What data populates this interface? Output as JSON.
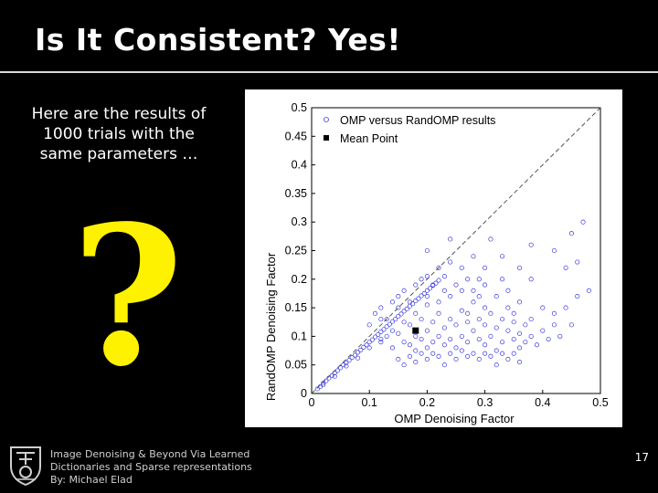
{
  "slide": {
    "title": "Is It Consistent? Yes!",
    "intro_lines": [
      "Here are the results of",
      "1000 trials with the",
      "same parameters …"
    ],
    "question_mark": "?",
    "footer_lines": [
      "Image Denoising & Beyond Via Learned",
      "Dictionaries and Sparse representations",
      "By: Michael Elad"
    ],
    "page_number": "17",
    "colors": {
      "background": "#000000",
      "title": "#ffffff",
      "question_mark": "#fff200",
      "scatter": "#3b3bdc",
      "mean_point": "#000000"
    }
  },
  "chart_data": {
    "type": "scatter",
    "xlabel": "OMP Denoising Factor",
    "ylabel": "RandOMP Denoising Factor",
    "xlim": [
      0,
      0.5
    ],
    "ylim": [
      0,
      0.5
    ],
    "xticks": [
      "0",
      "0.1",
      "0.2",
      "0.3",
      "0.4",
      "0.5"
    ],
    "yticks": [
      "0",
      "0.05",
      "0.1",
      "0.15",
      "0.2",
      "0.25",
      "0.3",
      "0.35",
      "0.4",
      "0.45",
      "0.5"
    ],
    "legend": {
      "placement": "top-left",
      "entries": [
        "OMP versus RandOMP results",
        "Mean Point"
      ]
    },
    "reference_line": {
      "style": "dashed",
      "from": [
        0,
        0
      ],
      "to": [
        0.5,
        0.5
      ]
    },
    "mean_point": {
      "x": 0.18,
      "y": 0.11
    },
    "series": [
      {
        "name": "OMP versus RandOMP results",
        "marker": "circle-open",
        "points": [
          [
            0.01,
            0.008
          ],
          [
            0.015,
            0.012
          ],
          [
            0.02,
            0.018
          ],
          [
            0.025,
            0.022
          ],
          [
            0.03,
            0.027
          ],
          [
            0.035,
            0.031
          ],
          [
            0.04,
            0.036
          ],
          [
            0.045,
            0.04
          ],
          [
            0.05,
            0.045
          ],
          [
            0.055,
            0.05
          ],
          [
            0.06,
            0.054
          ],
          [
            0.065,
            0.058
          ],
          [
            0.07,
            0.063
          ],
          [
            0.075,
            0.067
          ],
          [
            0.08,
            0.072
          ],
          [
            0.085,
            0.076
          ],
          [
            0.09,
            0.081
          ],
          [
            0.095,
            0.085
          ],
          [
            0.1,
            0.09
          ],
          [
            0.105,
            0.094
          ],
          [
            0.11,
            0.099
          ],
          [
            0.115,
            0.103
          ],
          [
            0.12,
            0.108
          ],
          [
            0.125,
            0.112
          ],
          [
            0.13,
            0.117
          ],
          [
            0.135,
            0.121
          ],
          [
            0.14,
            0.126
          ],
          [
            0.145,
            0.13
          ],
          [
            0.15,
            0.135
          ],
          [
            0.155,
            0.139
          ],
          [
            0.16,
            0.144
          ],
          [
            0.165,
            0.148
          ],
          [
            0.17,
            0.153
          ],
          [
            0.175,
            0.157
          ],
          [
            0.18,
            0.162
          ],
          [
            0.185,
            0.166
          ],
          [
            0.19,
            0.171
          ],
          [
            0.195,
            0.175
          ],
          [
            0.2,
            0.18
          ],
          [
            0.205,
            0.184
          ],
          [
            0.21,
            0.189
          ],
          [
            0.215,
            0.193
          ],
          [
            0.22,
            0.198
          ],
          [
            0.23,
            0.205
          ],
          [
            0.02,
            0.015
          ],
          [
            0.04,
            0.03
          ],
          [
            0.06,
            0.048
          ],
          [
            0.08,
            0.062
          ],
          [
            0.1,
            0.08
          ],
          [
            0.12,
            0.095
          ],
          [
            0.14,
            0.11
          ],
          [
            0.16,
            0.125
          ],
          [
            0.18,
            0.14
          ],
          [
            0.2,
            0.155
          ],
          [
            0.12,
            0.09
          ],
          [
            0.13,
            0.1
          ],
          [
            0.14,
            0.08
          ],
          [
            0.15,
            0.105
          ],
          [
            0.16,
            0.09
          ],
          [
            0.17,
            0.12
          ],
          [
            0.17,
            0.085
          ],
          [
            0.18,
            0.1
          ],
          [
            0.18,
            0.075
          ],
          [
            0.19,
            0.13
          ],
          [
            0.19,
            0.095
          ],
          [
            0.2,
            0.11
          ],
          [
            0.2,
            0.08
          ],
          [
            0.21,
            0.125
          ],
          [
            0.21,
            0.09
          ],
          [
            0.22,
            0.14
          ],
          [
            0.22,
            0.1
          ],
          [
            0.23,
            0.115
          ],
          [
            0.23,
            0.085
          ],
          [
            0.24,
            0.13
          ],
          [
            0.24,
            0.095
          ],
          [
            0.25,
            0.12
          ],
          [
            0.25,
            0.08
          ],
          [
            0.26,
            0.145
          ],
          [
            0.26,
            0.1
          ],
          [
            0.27,
            0.125
          ],
          [
            0.27,
            0.09
          ],
          [
            0.28,
            0.11
          ],
          [
            0.28,
            0.16
          ],
          [
            0.29,
            0.13
          ],
          [
            0.29,
            0.095
          ],
          [
            0.3,
            0.12
          ],
          [
            0.3,
            0.085
          ],
          [
            0.31,
            0.14
          ],
          [
            0.31,
            0.1
          ],
          [
            0.32,
            0.115
          ],
          [
            0.32,
            0.075
          ],
          [
            0.33,
            0.13
          ],
          [
            0.33,
            0.09
          ],
          [
            0.34,
            0.11
          ],
          [
            0.34,
            0.15
          ],
          [
            0.35,
            0.095
          ],
          [
            0.35,
            0.125
          ],
          [
            0.36,
            0.105
          ],
          [
            0.36,
            0.08
          ],
          [
            0.37,
            0.12
          ],
          [
            0.37,
            0.09
          ],
          [
            0.38,
            0.1
          ],
          [
            0.38,
            0.13
          ],
          [
            0.39,
            0.085
          ],
          [
            0.4,
            0.11
          ],
          [
            0.41,
            0.095
          ],
          [
            0.42,
            0.12
          ],
          [
            0.15,
            0.06
          ],
          [
            0.16,
            0.05
          ],
          [
            0.17,
            0.065
          ],
          [
            0.18,
            0.055
          ],
          [
            0.19,
            0.07
          ],
          [
            0.2,
            0.06
          ],
          [
            0.21,
            0.07
          ],
          [
            0.22,
            0.065
          ],
          [
            0.23,
            0.05
          ],
          [
            0.24,
            0.07
          ],
          [
            0.25,
            0.06
          ],
          [
            0.26,
            0.075
          ],
          [
            0.27,
            0.065
          ],
          [
            0.28,
            0.07
          ],
          [
            0.29,
            0.06
          ],
          [
            0.3,
            0.07
          ],
          [
            0.31,
            0.065
          ],
          [
            0.32,
            0.05
          ],
          [
            0.33,
            0.07
          ],
          [
            0.34,
            0.06
          ],
          [
            0.35,
            0.07
          ],
          [
            0.36,
            0.055
          ],
          [
            0.1,
            0.12
          ],
          [
            0.11,
            0.14
          ],
          [
            0.12,
            0.15
          ],
          [
            0.13,
            0.13
          ],
          [
            0.14,
            0.16
          ],
          [
            0.15,
            0.17
          ],
          [
            0.16,
            0.18
          ],
          [
            0.17,
            0.16
          ],
          [
            0.18,
            0.19
          ],
          [
            0.19,
            0.2
          ],
          [
            0.2,
            0.17
          ],
          [
            0.21,
            0.19
          ],
          [
            0.22,
            0.16
          ],
          [
            0.23,
            0.18
          ],
          [
            0.24,
            0.17
          ],
          [
            0.25,
            0.19
          ],
          [
            0.26,
            0.18
          ],
          [
            0.27,
            0.2
          ],
          [
            0.28,
            0.18
          ],
          [
            0.29,
            0.17
          ],
          [
            0.3,
            0.19
          ],
          [
            0.32,
            0.17
          ],
          [
            0.34,
            0.18
          ],
          [
            0.36,
            0.16
          ],
          [
            0.2,
            0.25
          ],
          [
            0.22,
            0.22
          ],
          [
            0.24,
            0.23
          ],
          [
            0.26,
            0.22
          ],
          [
            0.28,
            0.24
          ],
          [
            0.3,
            0.22
          ],
          [
            0.33,
            0.24
          ],
          [
            0.36,
            0.22
          ],
          [
            0.24,
            0.27
          ],
          [
            0.31,
            0.27
          ],
          [
            0.38,
            0.2
          ],
          [
            0.4,
            0.15
          ],
          [
            0.42,
            0.14
          ],
          [
            0.44,
            0.15
          ],
          [
            0.46,
            0.17
          ],
          [
            0.45,
            0.12
          ],
          [
            0.43,
            0.1
          ],
          [
            0.48,
            0.18
          ],
          [
            0.47,
            0.3
          ],
          [
            0.45,
            0.28
          ],
          [
            0.42,
            0.25
          ],
          [
            0.38,
            0.26
          ],
          [
            0.44,
            0.22
          ],
          [
            0.46,
            0.23
          ],
          [
            0.3,
            0.15
          ],
          [
            0.27,
            0.14
          ],
          [
            0.35,
            0.14
          ],
          [
            0.29,
            0.2
          ],
          [
            0.33,
            0.2
          ],
          [
            0.2,
            0.205
          ],
          [
            0.15,
            0.15
          ],
          [
            0.12,
            0.13
          ]
        ]
      }
    ]
  }
}
